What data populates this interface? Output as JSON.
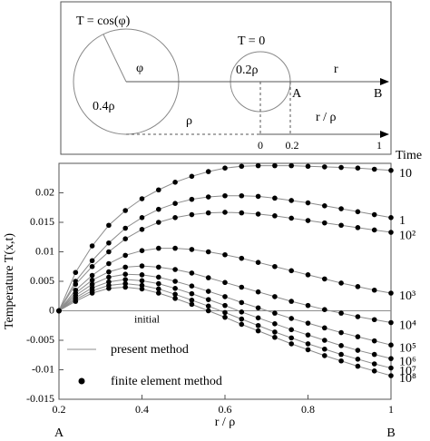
{
  "diagram": {
    "left_label": "T = cos(φ)",
    "angle": "φ",
    "radius_big": "0.4ρ",
    "right_label": "T = 0",
    "radius_small": "0.2ρ",
    "axis_r": "r",
    "point_a": "A",
    "point_b": "B",
    "rho": "ρ",
    "axis_ratio": "r / ρ",
    "tick_0": "0",
    "tick_02": "0.2",
    "tick_1": "1"
  },
  "chart_data": {
    "type": "line",
    "y_label": "Temperature T(x,t)",
    "x_label": "r / ρ",
    "left_end": "A",
    "right_end": "B",
    "series_header": "Time",
    "annotation": "initial",
    "legend": [
      "present method",
      "finite element method"
    ],
    "line_color": "#8c8c8c",
    "marker_color": "#000000",
    "x": [
      0.2,
      0.24,
      0.28,
      0.32,
      0.36,
      0.4,
      0.44,
      0.48,
      0.52,
      0.56,
      0.6,
      0.64,
      0.68,
      0.72,
      0.76,
      0.8,
      0.84,
      0.88,
      0.92,
      0.96,
      1.0
    ],
    "xlim": [
      0.2,
      1
    ],
    "xticks": [
      0.2,
      0.4,
      0.6,
      0.8,
      1
    ],
    "ylim": [
      -0.015,
      0.025
    ],
    "yticks": [
      -0.015,
      -0.01,
      -0.005,
      0,
      0.005,
      0.01,
      0.015,
      0.02
    ],
    "series": [
      {
        "name": "10",
        "values": [
          0,
          0.0065,
          0.011,
          0.0145,
          0.017,
          0.019,
          0.0205,
          0.0218,
          0.0228,
          0.0236,
          0.0242,
          0.0245,
          0.0246,
          0.0246,
          0.0246,
          0.0245,
          0.0244,
          0.0243,
          0.0242,
          0.024,
          0.0238
        ]
      },
      {
        "name": "1",
        "values": [
          0,
          0.005,
          0.0085,
          0.0115,
          0.014,
          0.0158,
          0.0172,
          0.0182,
          0.0189,
          0.0193,
          0.0195,
          0.0195,
          0.0194,
          0.0191,
          0.0187,
          0.0183,
          0.0178,
          0.0173,
          0.0168,
          0.0163,
          0.0158
        ]
      },
      {
        "name": "10²",
        "values": [
          0,
          0.0045,
          0.0075,
          0.01,
          0.0122,
          0.0138,
          0.015,
          0.0158,
          0.0163,
          0.0166,
          0.0167,
          0.0166,
          0.0164,
          0.0161,
          0.0157,
          0.0153,
          0.0149,
          0.0145,
          0.0141,
          0.0137,
          0.0133
        ]
      },
      {
        "name": "10³",
        "values": [
          0,
          0.0035,
          0.006,
          0.008,
          0.0094,
          0.0102,
          0.0106,
          0.0106,
          0.0104,
          0.01,
          0.0095,
          0.0089,
          0.0082,
          0.0075,
          0.0068,
          0.0061,
          0.0054,
          0.0047,
          0.0041,
          0.0035,
          0.003
        ]
      },
      {
        "name": "10⁴",
        "values": [
          0,
          0.003,
          0.0052,
          0.0066,
          0.0074,
          0.0076,
          0.0074,
          0.007,
          0.0064,
          0.0056,
          0.0048,
          0.004,
          0.0032,
          0.0024,
          0.0016,
          0.0009,
          0.0002,
          -0.0004,
          -0.001,
          -0.0015,
          -0.002
        ]
      },
      {
        "name": "10⁵",
        "values": [
          0,
          0.0026,
          0.0045,
          0.0057,
          0.0062,
          0.0061,
          0.0057,
          0.005,
          0.0042,
          0.0033,
          0.0024,
          0.0014,
          0.0005,
          -0.0004,
          -0.0013,
          -0.0021,
          -0.0029,
          -0.0037,
          -0.0044,
          -0.0051,
          -0.0058
        ]
      },
      {
        "name": "10⁶",
        "values": [
          0,
          0.0022,
          0.0039,
          0.0049,
          0.0053,
          0.0051,
          0.0046,
          0.0038,
          0.0029,
          0.0019,
          0.0009,
          -0.0002,
          -0.0012,
          -0.0022,
          -0.0032,
          -0.0041,
          -0.005,
          -0.0059,
          -0.0067,
          -0.0074,
          -0.0081
        ]
      },
      {
        "name": "10⁷",
        "values": [
          0,
          0.0019,
          0.0034,
          0.0043,
          0.0046,
          0.0043,
          0.0037,
          0.0028,
          0.0018,
          0.0008,
          -0.0003,
          -0.0014,
          -0.0025,
          -0.0036,
          -0.0046,
          -0.0056,
          -0.0065,
          -0.0074,
          -0.0082,
          -0.009,
          -0.0097
        ]
      },
      {
        "name": "10⁸",
        "values": [
          0,
          0.0016,
          0.003,
          0.0038,
          0.004,
          0.0037,
          0.003,
          0.0021,
          0.0011,
          0,
          -0.0011,
          -0.0023,
          -0.0034,
          -0.0045,
          -0.0056,
          -0.0066,
          -0.0076,
          -0.0085,
          -0.0094,
          -0.0102,
          -0.011
        ]
      }
    ]
  }
}
